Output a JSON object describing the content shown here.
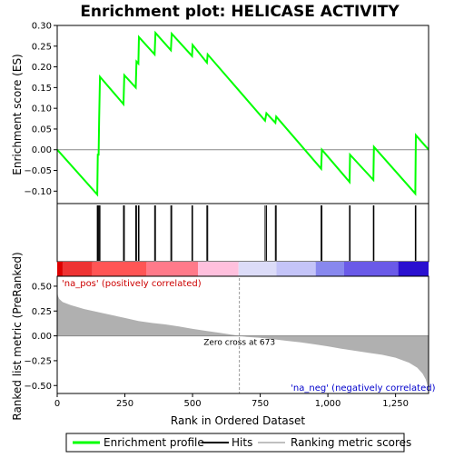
{
  "chart_data": {
    "type": "line",
    "title": "Enrichment plot: HELICASE ACTIVITY",
    "es_panel": {
      "ylabel": "Enrichment score (ES)",
      "ylim": [
        -0.13,
        0.3
      ],
      "yticks": [
        -0.1,
        -0.05,
        0.0,
        0.05,
        0.1,
        0.15,
        0.2,
        0.25,
        0.3
      ],
      "ytick_labels": [
        "−0.10",
        "−0.05",
        "0.00",
        "0.05",
        "0.10",
        "0.15",
        "0.20",
        "0.25",
        "0.30"
      ],
      "series": [
        {
          "name": "Enrichment profile",
          "color": "#00ff00",
          "points": [
            [
              0,
              0.0
            ],
            [
              148,
              -0.108
            ],
            [
              150,
              -0.012
            ],
            [
              153,
              -0.012
            ],
            [
              155,
              0.075
            ],
            [
              158,
              0.176
            ],
            [
              245,
              0.11
            ],
            [
              248,
              0.18
            ],
            [
              290,
              0.15
            ],
            [
              293,
              0.213
            ],
            [
              300,
              0.208
            ],
            [
              302,
              0.272
            ],
            [
              360,
              0.23
            ],
            [
              363,
              0.282
            ],
            [
              420,
              0.24
            ],
            [
              423,
              0.28
            ],
            [
              498,
              0.226
            ],
            [
              500,
              0.253
            ],
            [
              553,
              0.21
            ],
            [
              556,
              0.23
            ],
            [
              768,
              0.07
            ],
            [
              773,
              0.088
            ],
            [
              806,
              0.065
            ],
            [
              809,
              0.08
            ],
            [
              975,
              -0.046
            ],
            [
              978,
              0.0
            ],
            [
              1080,
              -0.078
            ],
            [
              1082,
              -0.012
            ],
            [
              1168,
              -0.073
            ],
            [
              1170,
              0.007
            ],
            [
              1323,
              -0.106
            ],
            [
              1325,
              0.035
            ],
            [
              1372,
              0.0
            ]
          ]
        }
      ]
    },
    "hits": [
      148,
      150,
      153,
      155,
      158,
      245,
      248,
      290,
      293,
      300,
      302,
      360,
      363,
      420,
      423,
      498,
      500,
      553,
      556,
      768,
      773,
      806,
      809,
      975,
      978,
      1080,
      1082,
      1168,
      1170,
      1323,
      1325
    ],
    "metric_panel": {
      "ylabel": "Ranked list metric (PreRanked)",
      "ylim": [
        -0.58,
        0.6
      ],
      "yticks": [
        -0.5,
        -0.25,
        0.0,
        0.25,
        0.5
      ],
      "ytick_labels": [
        "−0.50",
        "−0.25",
        "0.00",
        "0.25",
        "0.50"
      ],
      "profile": [
        [
          0,
          0.45
        ],
        [
          3,
          0.4
        ],
        [
          8,
          0.37
        ],
        [
          20,
          0.34
        ],
        [
          50,
          0.31
        ],
        [
          100,
          0.27
        ],
        [
          150,
          0.24
        ],
        [
          200,
          0.21
        ],
        [
          250,
          0.18
        ],
        [
          300,
          0.15
        ],
        [
          350,
          0.13
        ],
        [
          400,
          0.115
        ],
        [
          450,
          0.095
        ],
        [
          500,
          0.07
        ],
        [
          550,
          0.05
        ],
        [
          600,
          0.03
        ],
        [
          650,
          0.01
        ],
        [
          673,
          0.0
        ],
        [
          700,
          -0.01
        ],
        [
          750,
          -0.02
        ],
        [
          800,
          -0.035
        ],
        [
          850,
          -0.05
        ],
        [
          900,
          -0.065
        ],
        [
          950,
          -0.085
        ],
        [
          1000,
          -0.105
        ],
        [
          1050,
          -0.13
        ],
        [
          1100,
          -0.15
        ],
        [
          1150,
          -0.17
        ],
        [
          1200,
          -0.19
        ],
        [
          1250,
          -0.22
        ],
        [
          1300,
          -0.27
        ],
        [
          1330,
          -0.32
        ],
        [
          1350,
          -0.38
        ],
        [
          1362,
          -0.44
        ],
        [
          1368,
          -0.5
        ],
        [
          1372,
          -0.55
        ]
      ],
      "zero_cross": 673,
      "zero_cross_label": "Zero cross at 673",
      "pos_label": "'na_pos' (positively correlated)",
      "neg_label": "'na_neg' (negatively correlated)",
      "pos_color": "#cc0000",
      "neg_color": "#0000cc",
      "fill_color": "#b0b0b0"
    },
    "color_bar": [
      {
        "from": 0,
        "to": 20,
        "color": "#dd0000"
      },
      {
        "from": 20,
        "to": 130,
        "color": "#ee3333"
      },
      {
        "from": 130,
        "to": 330,
        "color": "#ff5555"
      },
      {
        "from": 330,
        "to": 520,
        "color": "#ff7a8a"
      },
      {
        "from": 520,
        "to": 670,
        "color": "#ffc0dd"
      },
      {
        "from": 670,
        "to": 810,
        "color": "#dcdcf8"
      },
      {
        "from": 810,
        "to": 955,
        "color": "#c4c4f8"
      },
      {
        "from": 955,
        "to": 1060,
        "color": "#8888ee"
      },
      {
        "from": 1060,
        "to": 1260,
        "color": "#6a5ae8"
      },
      {
        "from": 1260,
        "to": 1372,
        "color": "#2a10d0"
      }
    ],
    "xlabel": "Rank in Ordered Dataset",
    "xlim": [
      0,
      1372
    ],
    "xticks": [
      0,
      250,
      500,
      750,
      1000,
      1250
    ],
    "xtick_labels": [
      "0",
      "250",
      "500",
      "750",
      "1,000",
      "1,250"
    ],
    "legend": {
      "placement": "bottom",
      "entries": [
        {
          "name": "Enrichment profile",
          "color": "#00ff00"
        },
        {
          "name": "Hits",
          "color": "#000000"
        },
        {
          "name": "Ranking metric scores",
          "color": "#c0c0c0"
        }
      ]
    }
  }
}
